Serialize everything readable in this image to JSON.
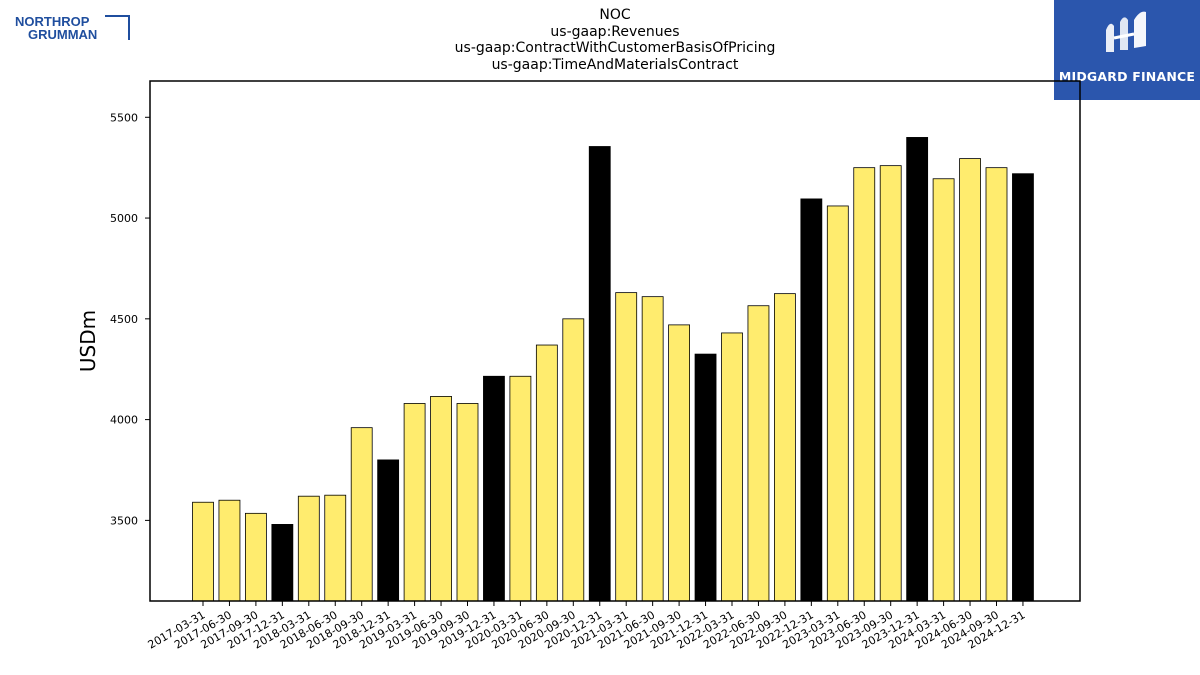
{
  "title": {
    "line1": "NOC",
    "line2": "us-gaap:Revenues",
    "line3": "us-gaap:ContractWithCustomerBasisOfPricing",
    "line4": "us-gaap:TimeAndMaterialsContract"
  },
  "logos": {
    "left": {
      "line1": "NORTHROP",
      "line2": "GRUMMAN",
      "color": "#1f4e9e"
    },
    "right": {
      "text": "MIDGARD FINANCE",
      "background": "#2b56ad"
    }
  },
  "chart_data": {
    "type": "bar",
    "ylabel": "USDm",
    "xlabel": "",
    "ylim": [
      3100,
      5680
    ],
    "yticks": [
      3500,
      4000,
      4500,
      5000,
      5500
    ],
    "grid": false,
    "colors": {
      "default": "#ffec6e",
      "q4": "#000000",
      "edge": "#000000"
    },
    "categories": [
      "2017-03-31",
      "2017-06-30",
      "2017-09-30",
      "2017-12-31",
      "2018-03-31",
      "2018-06-30",
      "2018-09-30",
      "2018-12-31",
      "2019-03-31",
      "2019-06-30",
      "2019-09-30",
      "2019-12-31",
      "2020-03-31",
      "2020-06-30",
      "2020-09-30",
      "2020-12-31",
      "2021-03-31",
      "2021-06-30",
      "2021-09-30",
      "2021-12-31",
      "2022-03-31",
      "2022-06-30",
      "2022-09-30",
      "2022-12-31",
      "2023-03-31",
      "2023-06-30",
      "2023-09-30",
      "2023-12-31",
      "2024-03-31",
      "2024-06-30",
      "2024-09-30",
      "2024-12-31"
    ],
    "values": [
      3590,
      3600,
      3535,
      3480,
      3620,
      3625,
      3960,
      3800,
      4080,
      4115,
      4080,
      4215,
      4215,
      4370,
      4500,
      5355,
      4630,
      4610,
      4470,
      4325,
      4430,
      4565,
      4625,
      5095,
      5060,
      5250,
      5260,
      5400,
      5195,
      5295,
      5250,
      5220
    ],
    "highlight": [
      false,
      false,
      false,
      true,
      false,
      false,
      false,
      true,
      false,
      false,
      false,
      true,
      false,
      false,
      false,
      true,
      false,
      false,
      false,
      true,
      false,
      false,
      false,
      true,
      false,
      false,
      false,
      true,
      false,
      false,
      false,
      true
    ]
  }
}
